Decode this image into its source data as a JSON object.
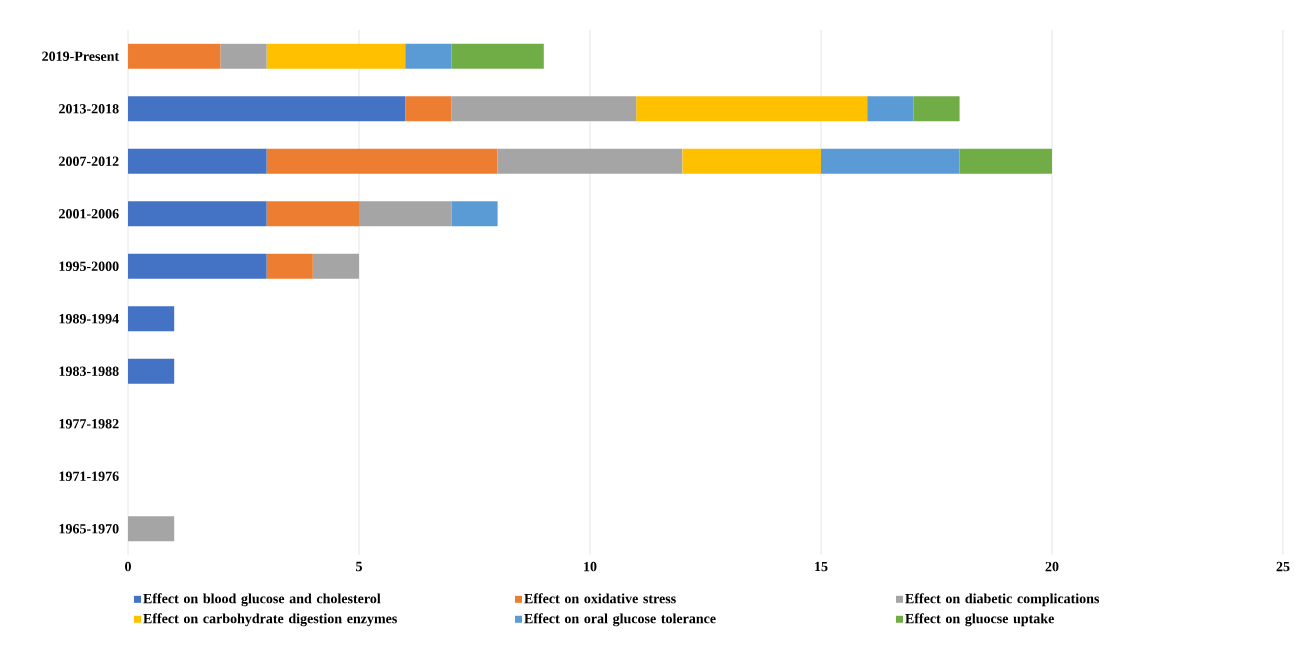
{
  "chart_data": {
    "type": "bar",
    "orientation": "horizontal",
    "stacked": true,
    "categories": [
      "2019-Present",
      "2013-2018",
      "2007-2012",
      "2001-2006",
      "1995-2000",
      "1989-1994",
      "1983-1988",
      "1977-1982",
      "1971-1976",
      "1965-1970"
    ],
    "series": [
      {
        "name": "Effect on blood glucose and cholesterol",
        "color": "#4472c4",
        "values": [
          0,
          6,
          3,
          3,
          3,
          1,
          1,
          0,
          0,
          0
        ]
      },
      {
        "name": "Effect on oxidative stress",
        "color": "#ed7d31",
        "values": [
          2,
          1,
          5,
          2,
          1,
          0,
          0,
          0,
          0,
          0
        ]
      },
      {
        "name": "Effect on diabetic complications",
        "color": "#a5a5a5",
        "values": [
          1,
          4,
          4,
          2,
          1,
          0,
          0,
          0,
          0,
          1
        ]
      },
      {
        "name": "Effect on carbohydrate digestion enzymes",
        "color": "#ffc000",
        "values": [
          3,
          5,
          3,
          0,
          0,
          0,
          0,
          0,
          0,
          0
        ]
      },
      {
        "name": "Effect on oral glucose tolerance",
        "color": "#5b9bd5",
        "values": [
          1,
          1,
          3,
          1,
          0,
          0,
          0,
          0,
          0,
          0
        ]
      },
      {
        "name": "Effect on gluocse uptake",
        "color": "#70ad47",
        "values": [
          2,
          1,
          2,
          0,
          0,
          0,
          0,
          0,
          0,
          0
        ]
      }
    ],
    "xlim": [
      0,
      25
    ],
    "xticks": [
      0,
      5,
      10,
      15,
      20,
      25
    ],
    "grid": "x",
    "legend": "bottom"
  }
}
